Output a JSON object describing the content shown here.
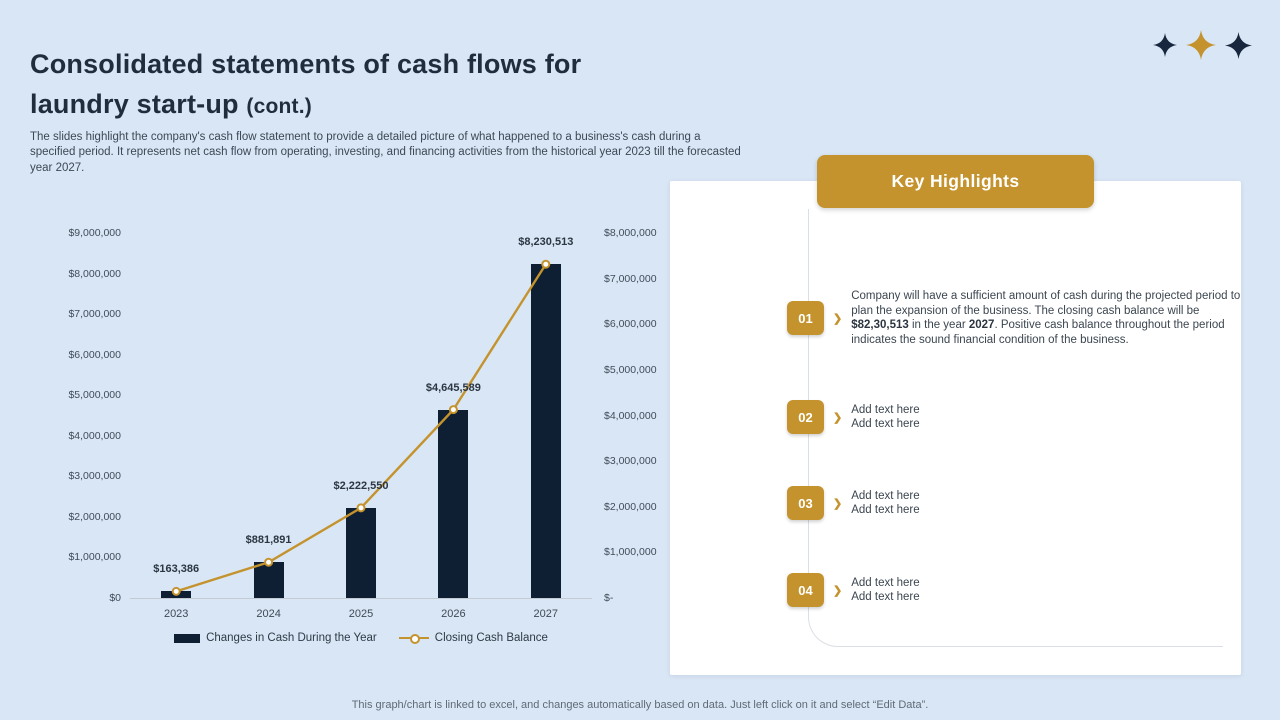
{
  "colors": {
    "background": "#d9e6f5",
    "title": "#1f2d3d",
    "gold": "#c4932d",
    "navy_bar": "#0e1f33",
    "body_text": "#3d4855",
    "panel_line": "#dadfe5",
    "footer_text": "#5f6a76"
  },
  "header": {
    "title_line1": "Consolidated statements of cash flows for",
    "title_line2_main": "laundry start-up ",
    "title_line2_suffix": "(cont.)",
    "description": "The slides highlight the company's cash flow statement to provide a detailed picture of what happened to a business's cash during a specified period. It represents net cash flow from operating, investing, and financing activities from the historical year 2023 till the forecasted year 2027."
  },
  "chart_data": {
    "type": "combo",
    "categories": [
      "2023",
      "2024",
      "2025",
      "2026",
      "2027"
    ],
    "series": [
      {
        "name": "Changes in Cash During the Year",
        "type": "bar",
        "axis": "left",
        "values": [
          163386,
          881891,
          2222550,
          4645589,
          8230513
        ]
      },
      {
        "name": "Closing Cash Balance",
        "type": "line",
        "axis": "left",
        "values": [
          163386,
          881891,
          2222550,
          4645589,
          8230513
        ]
      }
    ],
    "data_labels": [
      "$163,386",
      "$881,891",
      "$2,222,550",
      "$4,645,589",
      "$8,230,513"
    ],
    "left_axis": {
      "min": 0,
      "max": 9000000,
      "tick_labels": [
        "$9,000,000",
        "$8,000,000",
        "$7,000,000",
        "$6,000,000",
        "$5,000,000",
        "$4,000,000",
        "$3,000,000",
        "$2,000,000",
        "$1,000,000",
        "$0"
      ]
    },
    "right_axis": {
      "tick_labels": [
        "$8,000,000",
        "$7,000,000",
        "$6,000,000",
        "$5,000,000",
        "$4,000,000",
        "$3,000,000",
        "$2,000,000",
        "$1,000,000",
        "$-"
      ]
    },
    "legend_position": "bottom",
    "grid": false
  },
  "highlights": {
    "title": "Key Highlights",
    "items": [
      {
        "number": "01",
        "segments": [
          "Company will have a sufficient amount of cash during the projected period to plan the expansion of the business. The closing cash balance will be ",
          "$82,30,513",
          " in the year ",
          "2027",
          ". Positive cash balance throughout the period indicates the sound financial condition of the business."
        ]
      },
      {
        "number": "02",
        "lines": [
          "Add text here",
          "Add text here"
        ]
      },
      {
        "number": "03",
        "lines": [
          "Add text here",
          "Add text here"
        ]
      },
      {
        "number": "04",
        "lines": [
          "Add text here",
          "Add text here"
        ]
      }
    ]
  },
  "footer": {
    "note": "This graph/chart is linked to excel, and changes automatically based on data. Just left click on it and select “Edit Data”."
  }
}
